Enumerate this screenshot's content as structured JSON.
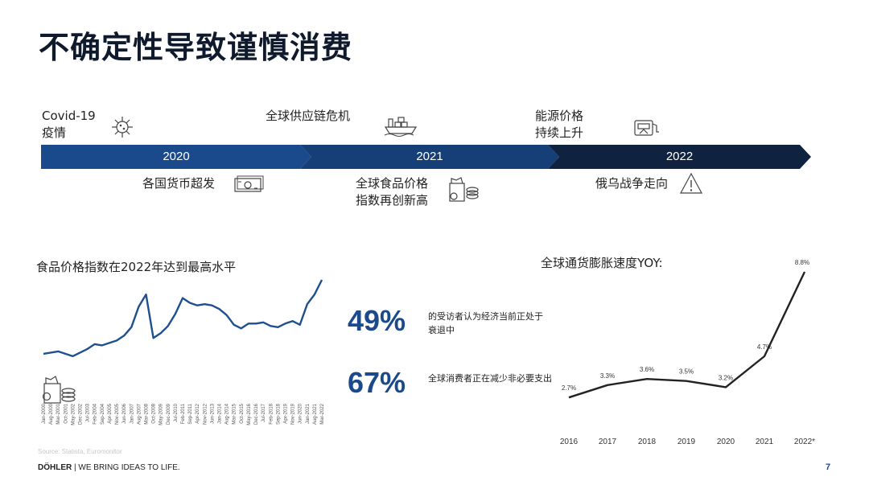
{
  "title": "不确定性导致谨慎消费",
  "timeline": {
    "years": [
      "2020",
      "2021",
      "2022"
    ],
    "events_top": [
      {
        "line1": "Covid-19",
        "line2": "疫情",
        "icon": "virus-icon"
      },
      {
        "line1": "全球供应链危机",
        "line2": "",
        "icon": "cargo-ship-icon"
      },
      {
        "line1": "能源价格",
        "line2": "持续上升",
        "icon": "fuel-pump-icon"
      }
    ],
    "events_bottom": [
      {
        "line1": "各国货币超发",
        "line2": "",
        "icon": "banknote-icon"
      },
      {
        "line1": "全球食品价格",
        "line2": "指数再创新高",
        "icon": "grocery-icon"
      },
      {
        "line1": "俄乌战争走向",
        "line2": "",
        "icon": "warning-icon"
      }
    ]
  },
  "food_chart": {
    "title": "食品价格指数在2022年达到最高水平",
    "icon": "grocery-icon"
  },
  "stats": [
    {
      "value": "49%",
      "text": "的受访者认为经济当前正处于衰退中"
    },
    {
      "value": "67%",
      "text": "全球消费者正在减少非必要支出"
    }
  ],
  "inflation_chart": {
    "title": "全球通货膨胀速度YOY:"
  },
  "source": "Source: Statista, Euromonitor",
  "footer": {
    "brand": "DÖHLER",
    "tagline": "WE BRING IDEAS TO LIFE."
  },
  "page_number": "7",
  "colors": {
    "accent": "#1b4a8c",
    "dark": "#0f2240",
    "line": "#1f4f8f"
  },
  "chart_data": [
    {
      "type": "line",
      "title": "食品价格指数在2022年达到最高水平",
      "x": [
        "Jan-2000",
        "Aug-2000",
        "Mar-2001",
        "Oct-2001",
        "May-2002",
        "Dec-2002",
        "Jul-2003",
        "Feb-2004",
        "Sep-2004",
        "Apr-2005",
        "Nov-2005",
        "Jun-2006",
        "Jan-2007",
        "Aug-2007",
        "Mar-2008",
        "Oct-2008",
        "May-2009",
        "Dec-2009",
        "Jul-2010",
        "Feb-2011",
        "Sep-2011",
        "Apr-2012",
        "Nov-2012",
        "Jun-2013",
        "Jan-2014",
        "Aug-2014",
        "Mar-2015",
        "Oct-2015",
        "May-2016",
        "Dec-2016",
        "Jul-2017",
        "Feb-2018",
        "Sep-2018",
        "Apr-2019",
        "Nov-2019",
        "Jun-2020",
        "Jan-2021",
        "Aug-2021",
        "Mar-2022"
      ],
      "series": [
        {
          "values": [
            55,
            56,
            57,
            55,
            53,
            56,
            59,
            63,
            62,
            64,
            66,
            70,
            77,
            94,
            104,
            68,
            72,
            78,
            88,
            101,
            97,
            95,
            96,
            95,
            92,
            87,
            79,
            76,
            80,
            80,
            81,
            78,
            77,
            80,
            82,
            79,
            96,
            104,
            116
          ]
        }
      ]
    },
    {
      "type": "line",
      "title": "全球通货膨胀速度YOY:",
      "categories": [
        "2016",
        "2017",
        "2018",
        "2019",
        "2020",
        "2021",
        "2022*"
      ],
      "values": [
        2.7,
        3.3,
        3.6,
        3.5,
        3.2,
        4.7,
        8.8
      ],
      "data_labels": [
        "2.7%",
        "3.3%",
        "3.6%",
        "3.5%",
        "3.2%",
        "4.7%",
        "8.8%"
      ]
    }
  ]
}
